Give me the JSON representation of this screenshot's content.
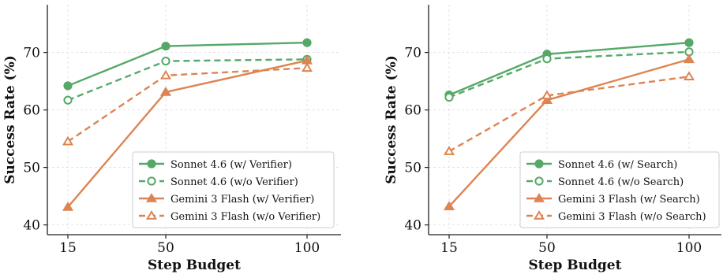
{
  "colors": {
    "sonnet": "#55a868",
    "gemini": "#dd8452"
  },
  "chart_data": [
    {
      "type": "line",
      "x": [
        15,
        50,
        100
      ],
      "xlabel": "Step Budget",
      "ylabel": "Success Rate (%)",
      "yticks": [
        40,
        50,
        60,
        70
      ],
      "ylim": [
        38.3,
        78.3
      ],
      "grid": true,
      "legend_position": "lower right",
      "series": [
        {
          "name": "Sonnet 4.6 (w/ Verifier)",
          "values": [
            64.2,
            71.1,
            71.7
          ],
          "color": "sonnet",
          "marker": "circle",
          "filled": true,
          "dashed": false
        },
        {
          "name": "Sonnet 4.6 (w/o Verifier)",
          "values": [
            61.7,
            68.5,
            68.8
          ],
          "color": "sonnet",
          "marker": "circle",
          "filled": false,
          "dashed": true
        },
        {
          "name": "Gemini 3 Flash (w/ Verifier)",
          "values": [
            43.1,
            63.1,
            68.6
          ],
          "color": "gemini",
          "marker": "triangle",
          "filled": true,
          "dashed": false
        },
        {
          "name": "Gemini 3 Flash (w/o Verifier)",
          "values": [
            54.5,
            66.0,
            67.3
          ],
          "color": "gemini",
          "marker": "triangle",
          "filled": false,
          "dashed": true
        }
      ]
    },
    {
      "type": "line",
      "x": [
        15,
        50,
        100
      ],
      "xlabel": "Step Budget",
      "ylabel": "Success Rate (%)",
      "yticks": [
        40,
        50,
        60,
        70
      ],
      "ylim": [
        38.3,
        78.3
      ],
      "grid": true,
      "legend_position": "lower right",
      "series": [
        {
          "name": "Sonnet 4.6 (w/ Search)",
          "values": [
            62.6,
            69.7,
            71.7
          ],
          "color": "sonnet",
          "marker": "circle",
          "filled": true,
          "dashed": false
        },
        {
          "name": "Sonnet 4.6 (w/o Search)",
          "values": [
            62.2,
            68.9,
            70.1
          ],
          "color": "sonnet",
          "marker": "circle",
          "filled": false,
          "dashed": true
        },
        {
          "name": "Gemini 3 Flash (w/ Search)",
          "values": [
            43.2,
            61.7,
            68.8
          ],
          "color": "gemini",
          "marker": "triangle",
          "filled": true,
          "dashed": false
        },
        {
          "name": "Gemini 3 Flash (w/o Search)",
          "values": [
            52.8,
            62.5,
            65.8
          ],
          "color": "gemini",
          "marker": "triangle",
          "filled": false,
          "dashed": true
        }
      ]
    }
  ]
}
